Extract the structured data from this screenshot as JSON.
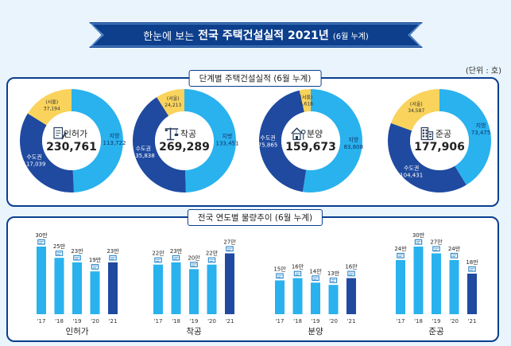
{
  "header": {
    "prefix": "한눈에 보는",
    "title": "전국 주택건설실적 2021년",
    "suffix": "(6월 누계)"
  },
  "unit_label": "(단위 : 호)",
  "section1_title": "단계별 주택건설실적 (6월 누계)",
  "section2_title": "전국 연도별 물량추이 (6월 누계)",
  "colors": {
    "metro": "#1f4aa0",
    "local": "#29b2ee",
    "seoul": "#f9d35b",
    "bar_light": "#29b2ee",
    "bar_dark": "#1f4aa0",
    "frame": "#0a3e8f"
  },
  "chart_data": [
    {
      "type": "pie",
      "donuts": [
        {
          "stage": "인허가",
          "total": "230,761",
          "icon": "document-pen-icon",
          "slices": [
            {
              "label": "지방",
              "value": 113722,
              "display": "113,722"
            },
            {
              "label": "수도권",
              "value": 117039,
              "display": "117,039"
            },
            {
              "label": "(서울)",
              "value": 37194,
              "display": "37,194"
            }
          ]
        },
        {
          "stage": "착공",
          "total": "269,289",
          "icon": "crane-icon",
          "slices": [
            {
              "label": "지방",
              "value": 133451,
              "display": "133,451"
            },
            {
              "label": "수도권",
              "value": 135838,
              "display": "135,838"
            },
            {
              "label": "(서울)",
              "value": 24213,
              "display": "24,213"
            }
          ]
        },
        {
          "stage": "분양",
          "total": "159,673",
          "icon": "house-key-icon",
          "slices": [
            {
              "label": "지방",
              "value": 83808,
              "display": "83,808"
            },
            {
              "label": "수도권",
              "value": 75865,
              "display": "75,865"
            },
            {
              "label": "(서울)",
              "value": 5618,
              "display": "5,618"
            }
          ]
        },
        {
          "stage": "준공",
          "total": "177,906",
          "icon": "building-icon",
          "slices": [
            {
              "label": "지방",
              "value": 73475,
              "display": "73,475"
            },
            {
              "label": "수도권",
              "value": 104431,
              "display": "104,431"
            },
            {
              "label": "(서울)",
              "value": 34587,
              "display": "34,587"
            }
          ]
        }
      ]
    },
    {
      "type": "bar",
      "categories": [
        "'17",
        "'18",
        "'19",
        "'20",
        "'21"
      ],
      "groups": [
        {
          "name": "인허가",
          "values": [
            30,
            25,
            23,
            19,
            23
          ],
          "labels": [
            "30만",
            "25만",
            "23만",
            "19만",
            "23만"
          ]
        },
        {
          "name": "착공",
          "values": [
            22,
            23,
            20,
            22,
            27
          ],
          "labels": [
            "22만",
            "23만",
            "20만",
            "22만",
            "27만"
          ]
        },
        {
          "name": "분양",
          "values": [
            15,
            16,
            14,
            13,
            16
          ],
          "labels": [
            "15만",
            "16만",
            "14만",
            "13만",
            "16만"
          ]
        },
        {
          "name": "준공",
          "values": [
            24,
            30,
            27,
            24,
            18
          ],
          "labels": [
            "24만",
            "30만",
            "27만",
            "24만",
            "18만"
          ]
        }
      ]
    }
  ]
}
